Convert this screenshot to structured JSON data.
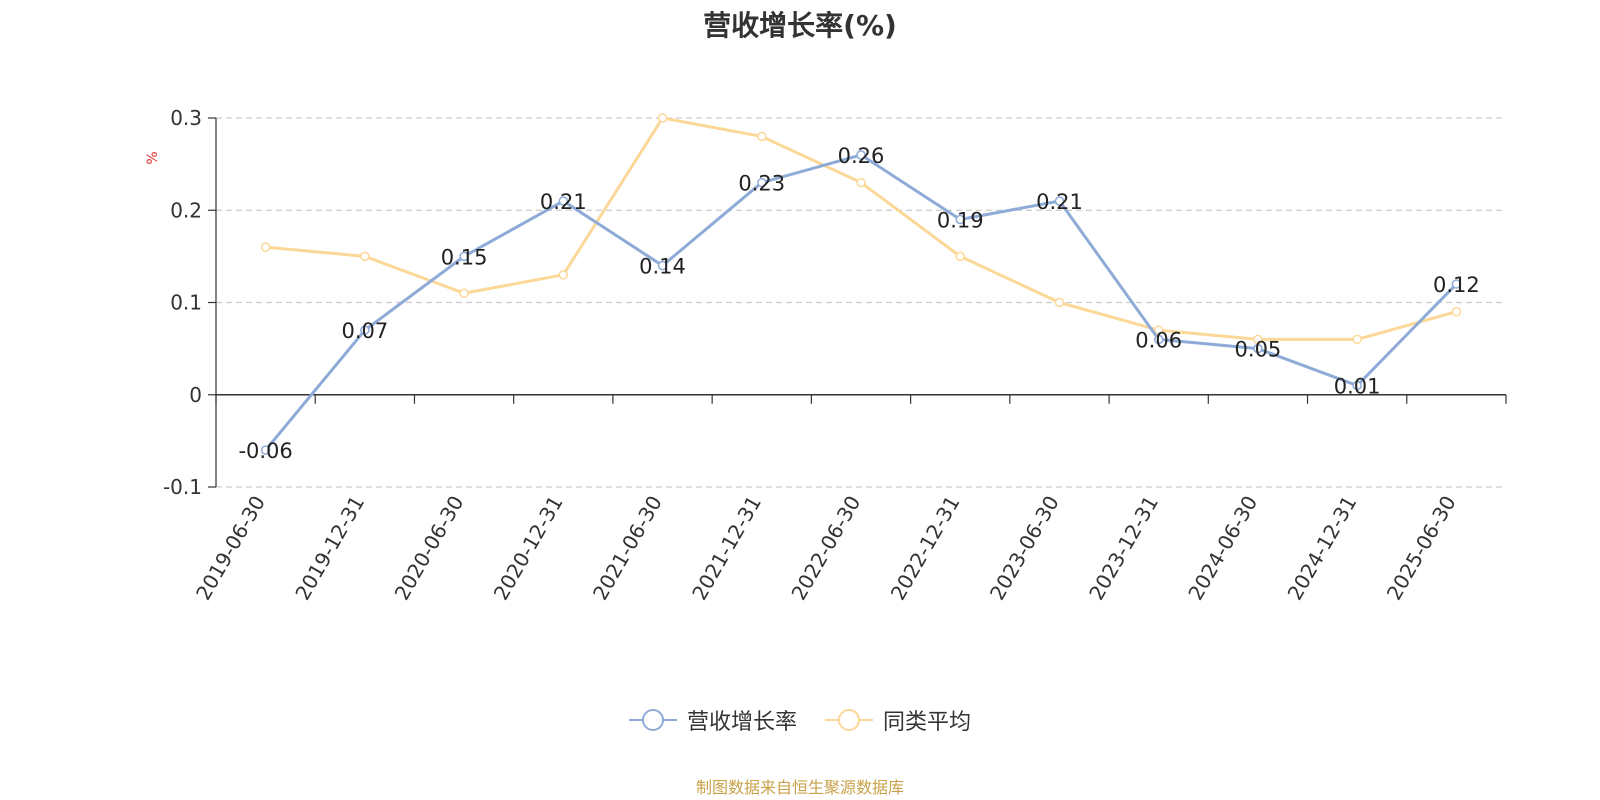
{
  "chart_data": {
    "type": "line",
    "title": "营收增长率(%)",
    "ylabel": "%",
    "xlabel": "",
    "categories": [
      "2019-06-30",
      "2019-12-31",
      "2020-06-30",
      "2020-12-31",
      "2021-06-30",
      "2021-12-31",
      "2022-06-30",
      "2022-12-31",
      "2023-06-30",
      "2023-12-31",
      "2024-06-30",
      "2024-12-31",
      "2025-06-30"
    ],
    "series": [
      {
        "name": "营收增长率",
        "color": "#8eabd8",
        "values": [
          -0.06,
          0.07,
          0.15,
          0.21,
          0.14,
          0.23,
          0.26,
          0.19,
          0.21,
          0.06,
          0.05,
          0.01,
          0.12
        ],
        "labels": [
          "-0.06",
          "0.07",
          "0.15",
          "0.21",
          "0.14",
          "0.23",
          "0.26",
          "0.19",
          "0.21",
          "0.06",
          "0.05",
          "0.01",
          "0.12"
        ]
      },
      {
        "name": "同类平均",
        "color": "#fcd898",
        "values": [
          0.16,
          0.15,
          0.11,
          0.13,
          0.3,
          0.28,
          0.23,
          0.15,
          0.1,
          0.07,
          0.06,
          0.06,
          0.09
        ]
      }
    ],
    "ylim": [
      -0.1,
      0.3
    ],
    "yticks": [
      -0.1,
      0,
      0.1,
      0.2,
      0.3
    ],
    "ytick_labels": [
      "-0.1",
      "0",
      "0.1",
      "0.2",
      "0.3"
    ],
    "grid": true,
    "legend": "bottom"
  },
  "source": "制图数据来自恒生聚源数据库"
}
